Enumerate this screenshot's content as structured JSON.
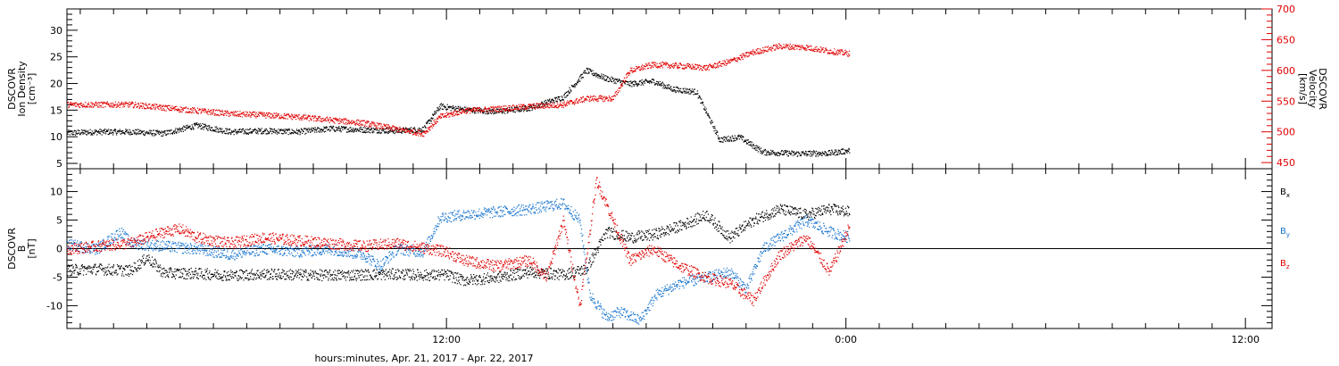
{
  "chart_data": {
    "type": "scatter",
    "xlabel": "hours:minutes, Apr. 21, 2017 - Apr. 22, 2017",
    "x_ticks": [
      "12:00",
      "0:00",
      "12:00"
    ],
    "x_range_hours": [
      0.6,
      36.8
    ],
    "x_tick_hours": [
      12,
      24,
      36
    ],
    "panels": [
      {
        "name": "density-velocity",
        "ylabel_lines": [
          "DSCOVR",
          "Ion Density",
          "[cm⁻³]"
        ],
        "ylim": [
          4,
          34
        ],
        "yticks": [
          5,
          10,
          15,
          20,
          25,
          30
        ],
        "y2label_lines": [
          "DSCOVR",
          "Velocity",
          "[km/s]"
        ],
        "y2lim": [
          440,
          700
        ],
        "y2ticks": [
          450,
          500,
          550,
          600,
          650,
          700
        ],
        "series": [
          {
            "color": "#000000",
            "axis": "left",
            "x": [
              0.6,
              1.5,
              2.5,
              3.5,
              4.5,
              5.5,
              6.5,
              7.5,
              8.5,
              9.5,
              10.5,
              11.3,
              11.8,
              12.5,
              13.5,
              14.5,
              15.5,
              16.2,
              16.8,
              17.5,
              18.2,
              18.8,
              19.5,
              20.2,
              20.8,
              21.5,
              22.5,
              23.5,
              24.1
            ],
            "y": [
              10.8,
              11,
              11,
              10.7,
              12.2,
              11,
              11.2,
              11,
              11.6,
              11.4,
              11.2,
              11.5,
              15.8,
              15.2,
              14.8,
              15.5,
              17.5,
              22.5,
              21,
              20,
              20.5,
              19,
              18.5,
              9.5,
              10,
              7.2,
              6.9,
              7,
              7.5
            ]
          },
          {
            "color": "#e00000",
            "axis": "right",
            "x": [
              0.6,
              1.5,
              2.5,
              3.5,
              4.5,
              5.5,
              6.5,
              7.5,
              8.5,
              9.5,
              10.5,
              11.3,
              11.8,
              12.5,
              13.5,
              14.5,
              15.5,
              16.2,
              17.0,
              17.5,
              18.2,
              19.0,
              19.8,
              20.5,
              21.2,
              22.0,
              22.8,
              23.5,
              24.1
            ],
            "y": [
              545,
              545,
              545,
              540,
              535,
              530,
              528,
              525,
              520,
              515,
              505,
              498,
              525,
              535,
              538,
              542,
              545,
              555,
              555,
              600,
              610,
              608,
              605,
              615,
              630,
              640,
              638,
              632,
              628
            ]
          }
        ]
      },
      {
        "name": "magnetic-field",
        "ylabel_lines": [
          "DSCOVR",
          "B",
          "[nT]"
        ],
        "ylim": [
          -14,
          14
        ],
        "yticks": [
          -10,
          -5,
          0,
          5,
          10
        ],
        "zero_line": true,
        "legend_position": "right",
        "series": [
          {
            "name": "Bx",
            "label_main": "B",
            "label_sub": "x",
            "color": "#000000",
            "x": [
              0.6,
              1.5,
              2.5,
              3.0,
              3.5,
              4.5,
              5.5,
              6.5,
              7.5,
              8.5,
              9.5,
              10.5,
              11.5,
              12.0,
              12.5,
              13.5,
              14.5,
              15.5,
              16.2,
              16.8,
              17.5,
              18.2,
              19.0,
              19.8,
              20.5,
              21.2,
              22.0,
              22.8,
              23.5,
              24.1
            ],
            "y": [
              -3.7,
              -3.5,
              -3.8,
              -1.5,
              -4.2,
              -4.3,
              -4.6,
              -4.4,
              -4.5,
              -4.6,
              -4.5,
              -4.4,
              -4.6,
              -4.5,
              -5.5,
              -5,
              -4,
              -4.5,
              -3.5,
              3,
              2,
              2.5,
              4,
              6,
              2,
              5,
              7,
              6,
              7,
              6.5
            ]
          },
          {
            "name": "By",
            "label_main": "B",
            "label_sub": "y",
            "color": "#1874cd",
            "x": [
              0.6,
              1.5,
              2.2,
              2.5,
              3.5,
              4.5,
              5.5,
              6.5,
              7.5,
              8.5,
              9.5,
              10.0,
              10.5,
              11.3,
              11.8,
              12.5,
              13.5,
              14.5,
              15.5,
              16.0,
              16.3,
              16.8,
              17.2,
              17.8,
              18.3,
              19.0,
              19.8,
              20.5,
              21.0,
              21.5,
              22.0,
              22.8,
              23.5,
              24.1
            ],
            "y": [
              0.8,
              0,
              3,
              1,
              0.5,
              0,
              -1,
              0,
              -0.5,
              0,
              -1,
              -3,
              0,
              -0.5,
              5.5,
              6,
              6.5,
              7,
              8,
              5,
              -8,
              -12,
              -11,
              -12.5,
              -8,
              -6,
              -5,
              -4,
              -7,
              0,
              2,
              5,
              3,
              2
            ]
          },
          {
            "name": "Bz",
            "label_main": "B",
            "label_sub": "z",
            "color": "#e00000",
            "x": [
              0.6,
              1.5,
              2.5,
              3.5,
              4.0,
              4.5,
              5.5,
              6.5,
              7.5,
              8.5,
              9.5,
              10.5,
              11.5,
              12.0,
              12.5,
              13.5,
              14.5,
              15.0,
              15.5,
              16.0,
              16.5,
              17.0,
              17.5,
              18.2,
              19.0,
              19.8,
              20.5,
              21.2,
              22.0,
              22.8,
              23.5,
              24.1
            ],
            "y": [
              0,
              0.5,
              1,
              3,
              3.5,
              2,
              1,
              2,
              1.5,
              1,
              0.5,
              1,
              0,
              -0.5,
              -2,
              -3,
              -2,
              -5,
              5,
              -10,
              12,
              5,
              -2,
              0,
              -3,
              -5,
              -6,
              -9,
              -1,
              2,
              -4,
              4
            ]
          }
        ]
      }
    ]
  }
}
